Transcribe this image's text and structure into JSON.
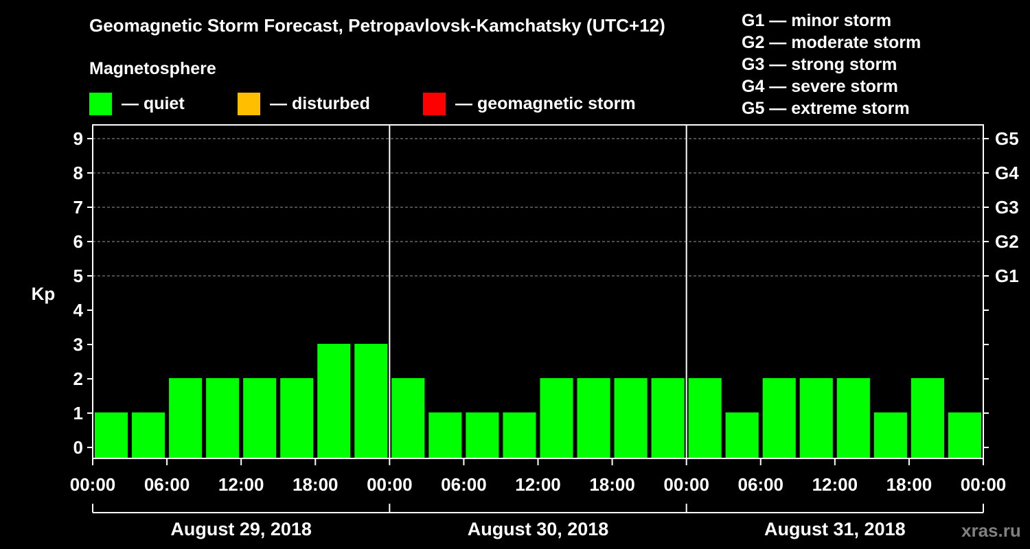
{
  "chart_data": {
    "type": "bar",
    "title": "Geomagnetic Storm Forecast, Petropavlovsk-Kamchatsky (UTC+12)",
    "ylabel": "Kp",
    "ylim": [
      0,
      9
    ],
    "yticks": [
      "0",
      "1",
      "2",
      "3",
      "4",
      "5",
      "6",
      "7",
      "8",
      "9"
    ],
    "right_labels": [
      {
        "kp": 5,
        "label": "G1"
      },
      {
        "kp": 6,
        "label": "G2"
      },
      {
        "kp": 7,
        "label": "G3"
      },
      {
        "kp": 8,
        "label": "G4"
      },
      {
        "kp": 9,
        "label": "G5"
      }
    ],
    "xticks": [
      "00:00",
      "06:00",
      "12:00",
      "18:00",
      "00:00",
      "06:00",
      "12:00",
      "18:00",
      "00:00",
      "06:00",
      "12:00",
      "18:00",
      "00:00"
    ],
    "days": [
      "August 29, 2018",
      "August 30, 2018",
      "August 31, 2018"
    ],
    "values": [
      1,
      1,
      2,
      2,
      2,
      2,
      3,
      3,
      2,
      1,
      1,
      1,
      2,
      2,
      2,
      2,
      2,
      1,
      2,
      2,
      2,
      1,
      2,
      1
    ],
    "interval_hours": 3,
    "grid": "dashed at Kp 5-9"
  },
  "legend": {
    "heading": "Magnetosphere",
    "items": [
      {
        "label": "— quiet",
        "color": "#00ff00"
      },
      {
        "label": "— disturbed",
        "color": "#ffbf00"
      },
      {
        "label": "— geomagnetic storm",
        "color": "#ff0000"
      }
    ]
  },
  "storm_scale": [
    "G1 — minor storm",
    "G2 — moderate storm",
    "G3 — strong storm",
    "G4 — severe storm",
    "G5 — extreme storm"
  ],
  "watermark": "xras.ru",
  "colors": {
    "quiet": "#00ff00",
    "disturbed": "#ffbf00",
    "storm": "#ff0000",
    "background": "#000000"
  }
}
